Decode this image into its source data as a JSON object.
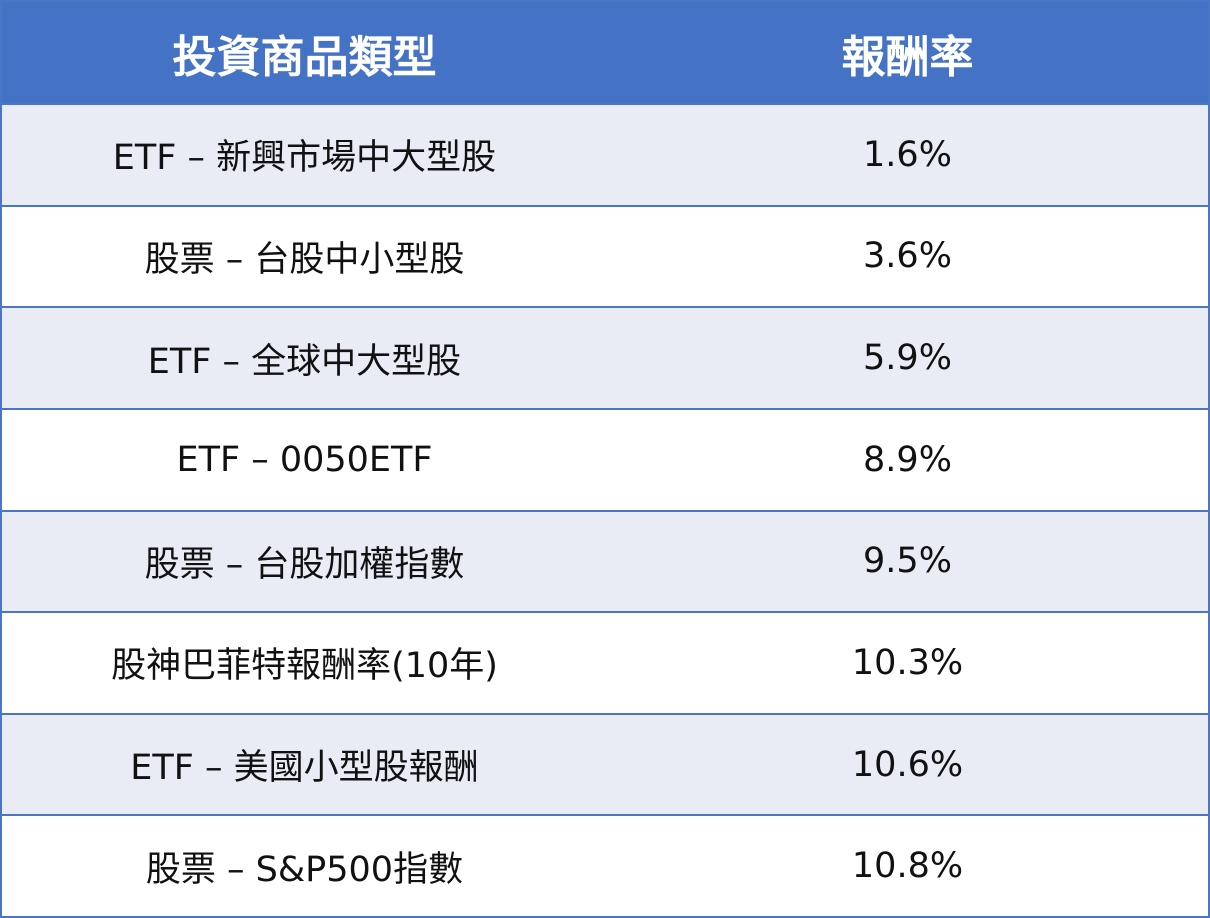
{
  "table": {
    "header": [
      "投資商品類型",
      "報酬率"
    ],
    "rows": [
      [
        "ETF – 新興市場中大型股",
        "1.6%"
      ],
      [
        "股票 – 台股中小型股",
        "3.6%"
      ],
      [
        "ETF – 全球中大型股",
        "5.9%"
      ],
      [
        "ETF – 0050ETF",
        "8.9%"
      ],
      [
        "股票 – 台股加權指數",
        "9.5%"
      ],
      [
        "股神巴菲特報酬率(10年)",
        "10.3%"
      ],
      [
        "ETF – 美國小型股報酬",
        "10.6%"
      ],
      [
        "股票 – S&P500指數",
        "10.8%"
      ]
    ]
  }
}
